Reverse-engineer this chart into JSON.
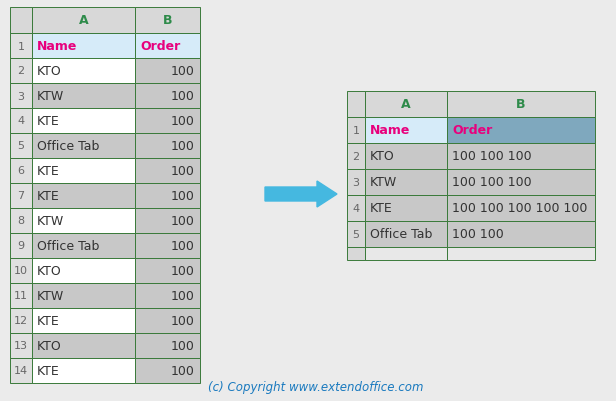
{
  "left_table": {
    "col_A": [
      "Name",
      "KTO",
      "KTW",
      "KTE",
      "Office Tab",
      "KTE",
      "KTE",
      "KTW",
      "Office Tab",
      "KTO",
      "KTW",
      "KTE",
      "KTO",
      "KTE"
    ],
    "col_B": [
      "Order",
      "100",
      "100",
      "100",
      "100",
      "100",
      "100",
      "100",
      "100",
      "100",
      "100",
      "100",
      "100",
      "100"
    ],
    "header_bg": "#d6ebf9",
    "col_header_bg": "#d8d8d8",
    "odd_row_bg": "#c8c8c8",
    "even_row_bg": "#ffffff",
    "header_text_color": "#e8007d",
    "col_header_text_color": "#2e8b4a",
    "border_color": "#3a7a3a",
    "row_num_bg": "#e0e0e0",
    "row_num_text_color": "#666666",
    "data_text_color": "#333333"
  },
  "right_table": {
    "col_A": [
      "Name",
      "KTO",
      "KTW",
      "KTE",
      "Office Tab"
    ],
    "col_B": [
      "Order",
      "100 100 100",
      "100 100 100",
      "100 100 100 100 100",
      "100 100"
    ],
    "header_bg_A": "#d6ebf9",
    "header_bg_B": "#7fa8be",
    "col_header_bg": "#d8d8d8",
    "row_bg": "#c8c8c8",
    "header_text_color": "#e8007d",
    "col_header_text_color": "#2e8b4a",
    "border_color": "#3a7a3a",
    "row_num_bg": "#d8d8d8",
    "row_num_text_color": "#666666",
    "data_text_color": "#333333"
  },
  "arrow_color": "#45b8e0",
  "bg_color": "#ebebeb",
  "copyright_text": "(c) Copyright www.extendoffice.com",
  "copyright_color": "#1a7abf",
  "fig_width": 6.16,
  "fig_height": 4.02
}
